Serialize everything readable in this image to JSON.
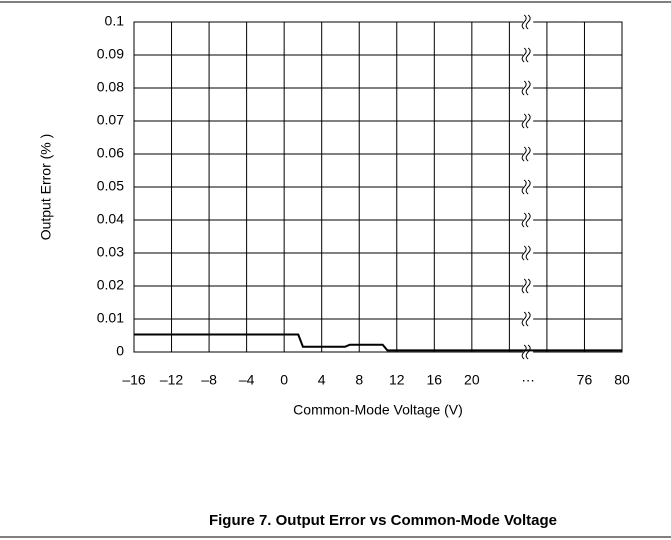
{
  "chart_data": {
    "type": "line",
    "title": "Figure 7. Output Error vs Common-Mode Voltage",
    "xlabel": "Common-Mode Voltage (V)",
    "ylabel": "Output Error (% )",
    "xlim": [
      -16,
      80
    ],
    "xbreak": {
      "range": [
        26,
        70
      ],
      "label": "…"
    },
    "xticks": [
      {
        "value": -16,
        "label": "–16"
      },
      {
        "value": -12,
        "label": "–12"
      },
      {
        "value": -8,
        "label": "–8"
      },
      {
        "value": -4,
        "label": "–4"
      },
      0,
      4,
      8,
      12,
      16,
      20,
      76,
      80
    ],
    "xgrid_extra": [
      24,
      72
    ],
    "ylim": [
      0,
      0.1
    ],
    "yticks": [
      0,
      0.01,
      0.02,
      0.03,
      0.04,
      0.05,
      0.06,
      0.07,
      0.08,
      0.09,
      0.1
    ],
    "grid": true,
    "series": [
      {
        "color": "#000000",
        "x": [
          -16,
          1.5,
          2,
          6.5,
          7,
          10.5,
          11,
          80
        ],
        "values": [
          0.0053,
          0.0053,
          0.0016,
          0.0016,
          0.0022,
          0.0022,
          0.0005,
          0.0005
        ]
      }
    ]
  }
}
